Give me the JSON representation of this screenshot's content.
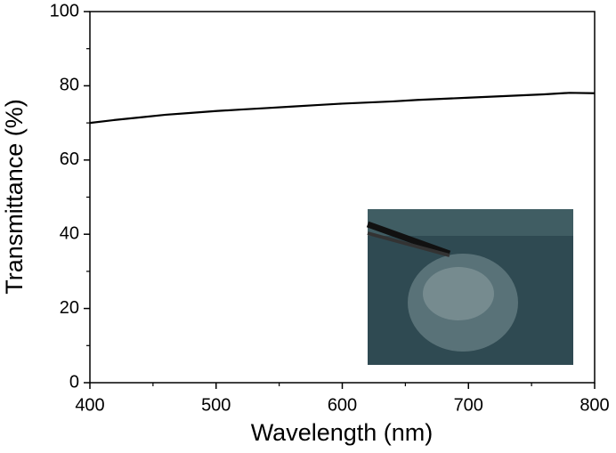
{
  "chart_data": {
    "type": "line",
    "xlabel": "Wavelength (nm)",
    "ylabel": "Transmittance (%)",
    "x": [
      400,
      420,
      440,
      460,
      480,
      500,
      520,
      540,
      560,
      580,
      600,
      620,
      640,
      660,
      680,
      700,
      720,
      740,
      760,
      780,
      800
    ],
    "series": [
      {
        "color": "#000000",
        "values": [
          70.0,
          70.8,
          71.5,
          72.2,
          72.7,
          73.2,
          73.6,
          74.0,
          74.4,
          74.8,
          75.2,
          75.5,
          75.8,
          76.2,
          76.5,
          76.8,
          77.1,
          77.4,
          77.7,
          78.1,
          78.0
        ]
      }
    ],
    "xlim": [
      400,
      800
    ],
    "xticks": [
      400,
      500,
      600,
      700,
      800
    ],
    "ylim": [
      0,
      100
    ],
    "yticks": [
      0,
      20,
      40,
      60,
      80,
      100
    ]
  }
}
